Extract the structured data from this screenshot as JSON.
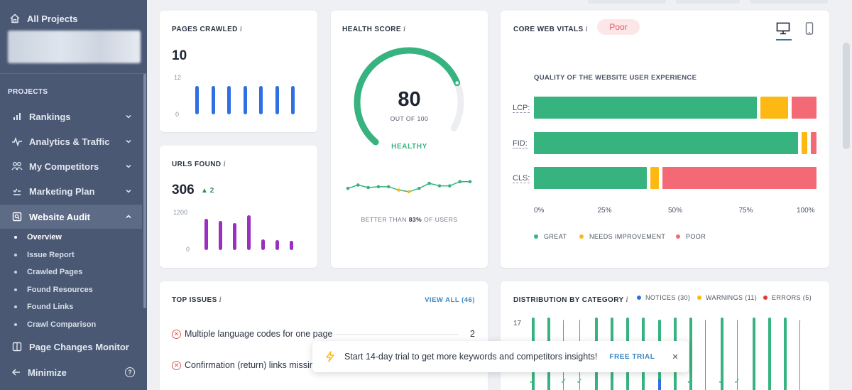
{
  "sidebar": {
    "all_projects": "All Projects",
    "section": "PROJECTS",
    "items": [
      {
        "label": "Rankings"
      },
      {
        "label": "Analytics & Traffic"
      },
      {
        "label": "My Competitors"
      },
      {
        "label": "Marketing Plan"
      },
      {
        "label": "Website Audit"
      }
    ],
    "subitems": [
      "Overview",
      "Issue Report",
      "Crawled Pages",
      "Found Resources",
      "Found Links",
      "Crawl Comparison"
    ],
    "page_changes": "Page Changes Monitor",
    "minimize": "Minimize",
    "help": "?"
  },
  "pages_crawled": {
    "title": "PAGES CRAWLED",
    "info": "i",
    "value": "10",
    "y_max": "12",
    "y_min": "0",
    "bars": [
      10,
      10,
      10,
      10,
      10,
      10,
      10
    ],
    "color": "#2f6fe4"
  },
  "urls_found": {
    "title": "URLS FOUND",
    "info": "i",
    "value": "306",
    "delta": "2",
    "y_max": "1200",
    "y_min": "0",
    "bars": [
      1000,
      930,
      860,
      1100,
      330,
      320,
      300
    ],
    "color": "#9b2fc0"
  },
  "health": {
    "title": "HEALTH SCORE",
    "info": "i",
    "score": 80,
    "score_text": "80",
    "out_of": "OUT OF 100",
    "status": "HEALTHY",
    "better_prefix": "BETTER THAN ",
    "better_value": "83%",
    "better_suffix": " OF USERS",
    "trend": [
      70,
      74,
      71,
      72,
      72,
      68,
      66,
      70,
      76,
      73,
      73,
      78,
      78
    ],
    "color": "#36b37e"
  },
  "cwv": {
    "title": "CORE WEB VITALS",
    "info": "i",
    "badge": "Poor",
    "chart_title": "QUALITY OF THE WEBSITE USER EXPERIENCE",
    "legend": [
      "GREAT",
      "NEEDS IMPROVEMENT",
      "POOR"
    ],
    "colors": [
      "#36b37e",
      "#fdb813",
      "#f36a76"
    ]
  },
  "chart_data": [
    {
      "type": "bar",
      "orientation": "horizontal",
      "stacked": true,
      "title": "QUALITY OF THE WEBSITE USER EXPERIENCE",
      "categories": [
        "LCP:",
        "FID:",
        "CLS:"
      ],
      "series": [
        {
          "name": "GREAT",
          "values": [
            81,
            96,
            41
          ]
        },
        {
          "name": "NEEDS IMPROVEMENT",
          "values": [
            10,
            2,
            3
          ]
        },
        {
          "name": "POOR",
          "values": [
            9,
            2,
            56
          ]
        }
      ],
      "x_ticks": [
        "0%",
        "25%",
        "50%",
        "75%",
        "100%"
      ],
      "xlim": [
        0,
        100
      ]
    },
    {
      "type": "bar",
      "title": "DISTRIBUTION BY CATEGORY",
      "y_tick": "17",
      "series": [
        {
          "name": "NOTICES (30)"
        },
        {
          "name": "WARNINGS (11)"
        },
        {
          "name": "ERRORS (5)"
        }
      ]
    }
  ],
  "top_issues": {
    "title": "TOP ISSUES",
    "info": "i",
    "view_all": "VIEW ALL (46)",
    "rows": [
      {
        "label": "Multiple language codes for one page",
        "count": "2"
      },
      {
        "label": "Confirmation (return) links missing",
        "count": ""
      }
    ]
  },
  "distribution": {
    "title": "DISTRIBUTION BY CATEGORY",
    "info": "i",
    "legend": [
      "NOTICES (30)",
      "WARNINGS (11)",
      "ERRORS (5)"
    ],
    "legend_colors": [
      "#2f6fe4",
      "#fdb813",
      "#e03c3c"
    ],
    "y_max": "17",
    "bar_color": "#36b37e",
    "bar_count": 18
  },
  "toast": {
    "text": "Start 14-day trial to get more keywords and competitors insights!",
    "cta": "FREE TRIAL",
    "close": "✕"
  }
}
